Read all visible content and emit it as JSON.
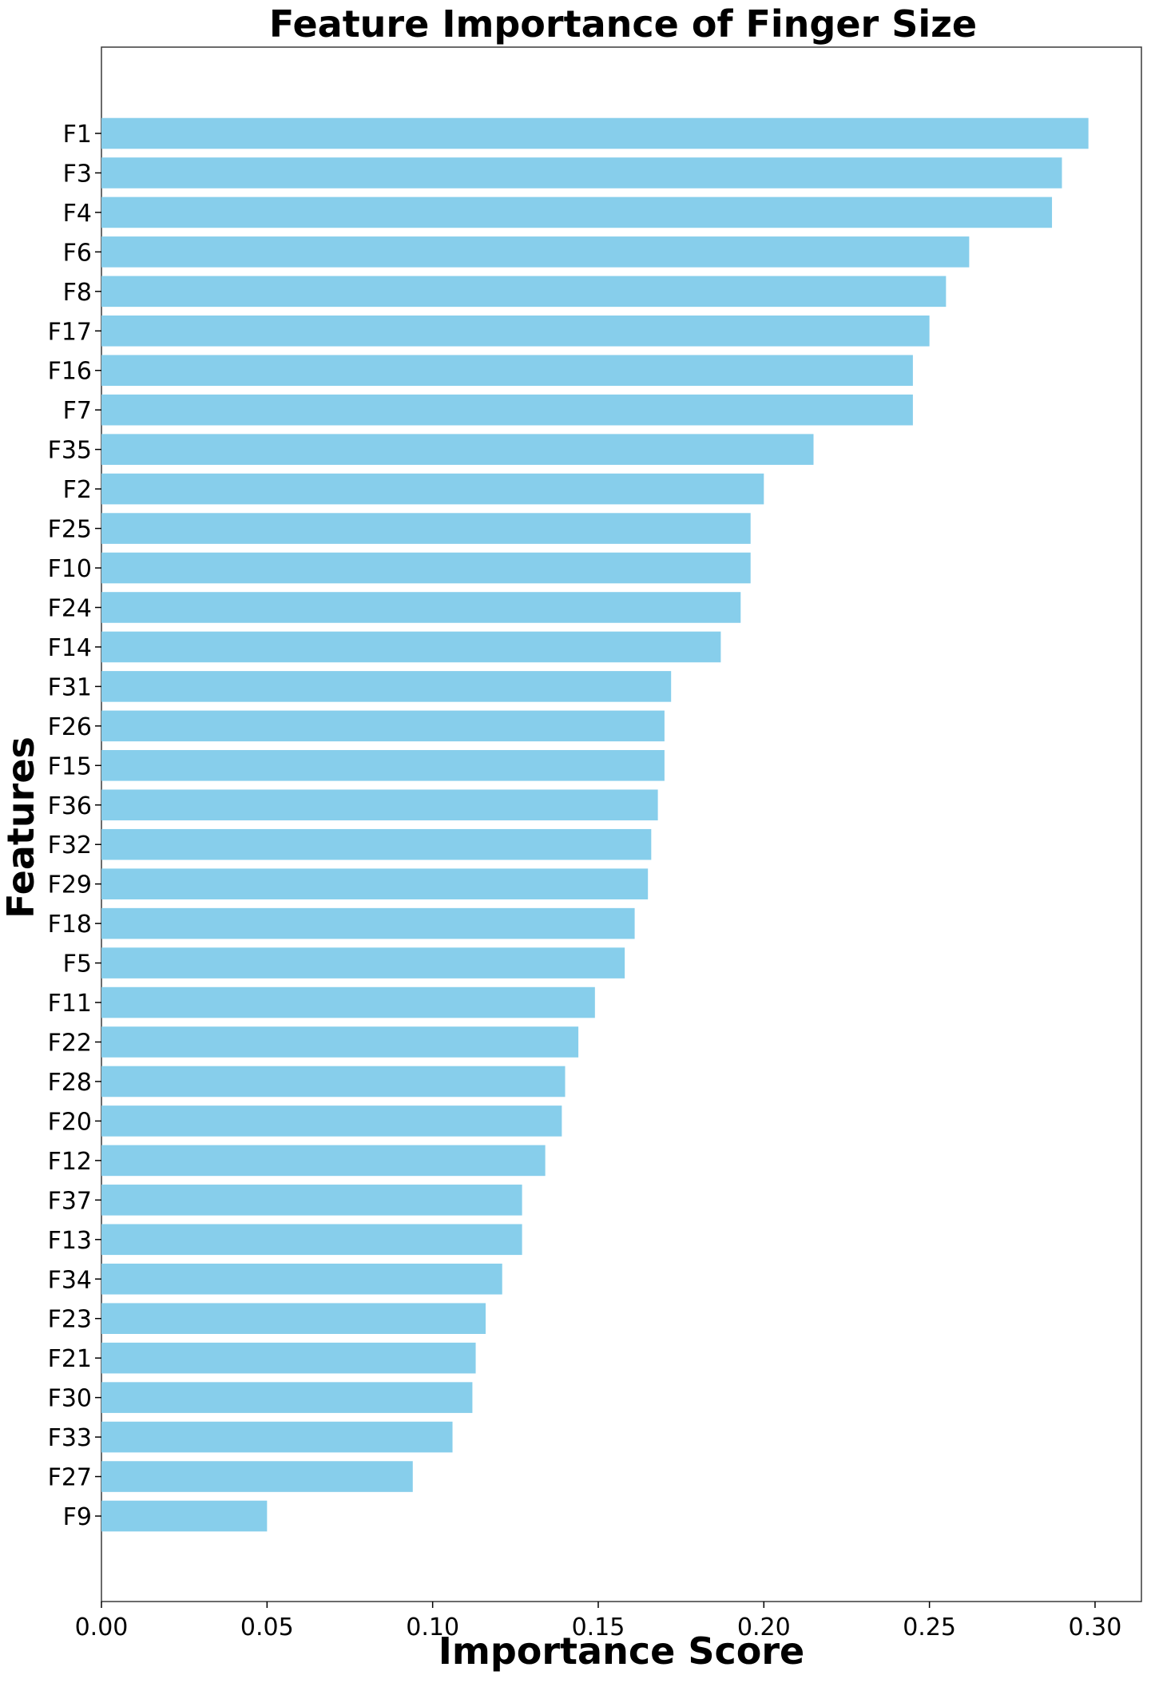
{
  "chart_data": {
    "type": "bar",
    "orientation": "horizontal",
    "title": "Feature Importance of Finger Size",
    "xlabel": "Importance Score",
    "ylabel": "Features",
    "xlim": [
      0,
      0.314
    ],
    "xticks": [
      "0.00",
      "0.05",
      "0.10",
      "0.15",
      "0.20",
      "0.25",
      "0.30"
    ],
    "xtick_values": [
      0,
      0.05,
      0.1,
      0.15,
      0.2,
      0.25,
      0.3
    ],
    "grid": false,
    "bar_color": "#87CEEB",
    "categories": [
      "F1",
      "F3",
      "F4",
      "F6",
      "F8",
      "F17",
      "F16",
      "F7",
      "F35",
      "F2",
      "F25",
      "F10",
      "F24",
      "F14",
      "F31",
      "F26",
      "F15",
      "F36",
      "F32",
      "F29",
      "F18",
      "F5",
      "F11",
      "F22",
      "F28",
      "F20",
      "F12",
      "F37",
      "F13",
      "F34",
      "F23",
      "F21",
      "F30",
      "F33",
      "F27",
      "F9"
    ],
    "values": [
      0.298,
      0.29,
      0.287,
      0.262,
      0.255,
      0.25,
      0.245,
      0.245,
      0.215,
      0.2,
      0.196,
      0.196,
      0.193,
      0.187,
      0.172,
      0.17,
      0.17,
      0.168,
      0.166,
      0.165,
      0.161,
      0.158,
      0.149,
      0.144,
      0.14,
      0.139,
      0.134,
      0.127,
      0.127,
      0.121,
      0.116,
      0.113,
      0.112,
      0.106,
      0.094,
      0.05
    ]
  }
}
